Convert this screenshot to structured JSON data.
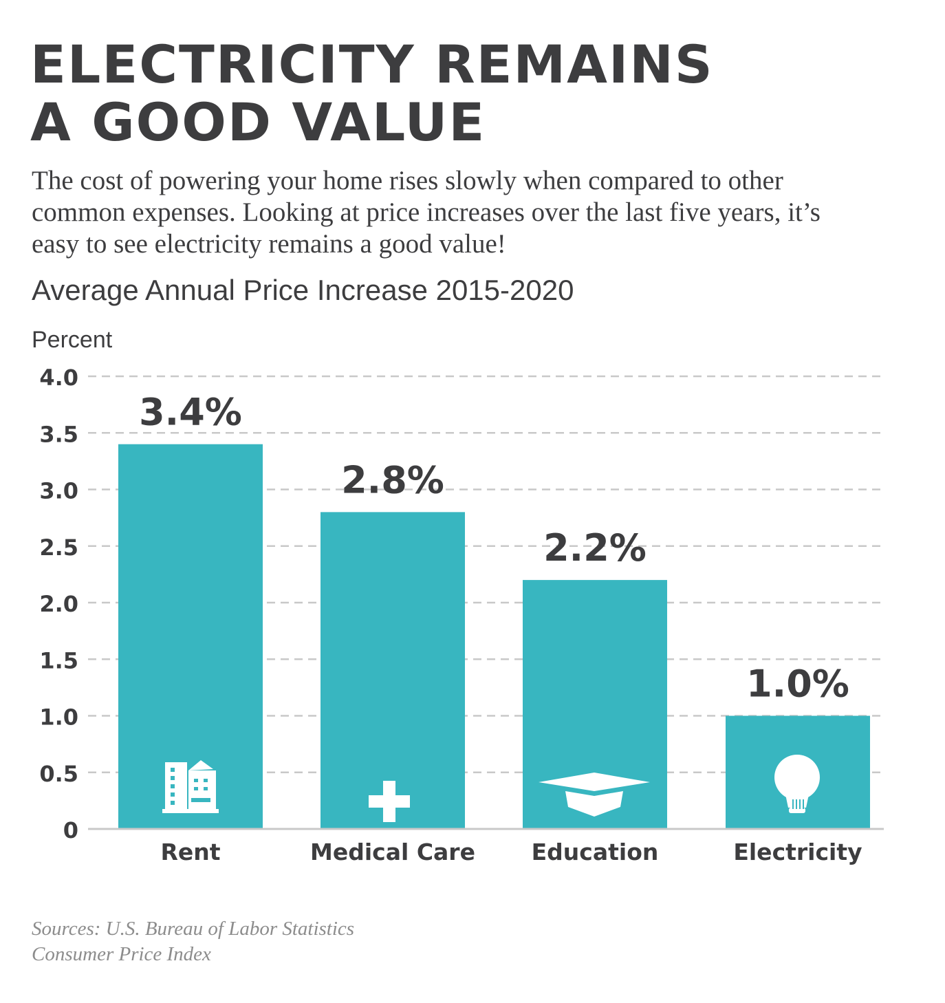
{
  "header": {
    "title_line1": "ELECTRICITY REMAINS",
    "title_line2": "A GOOD VALUE",
    "subtitle_line1": "The cost of powering your home rises slowly when compared to other",
    "subtitle_line2": "common expenses. Looking at price increases over the last five years, it’s",
    "subtitle_line3": "easy to see electricity remains a good value!"
  },
  "chart_data": {
    "type": "bar",
    "title": "Average Annual Price Increase 2015-2020",
    "ylabel": "Percent",
    "xlabel": "",
    "categories": [
      "Rent",
      "Medical Care",
      "Education",
      "Electricity"
    ],
    "values": [
      3.4,
      2.8,
      2.2,
      1.0
    ],
    "data_labels": [
      "3.4%",
      "2.8%",
      "2.2%",
      "1.0%"
    ],
    "icons": [
      "building-icon",
      "medical-cross-icon",
      "graduation-cap-icon",
      "lightbulb-icon"
    ],
    "y_ticks": [
      "0",
      "0.5",
      "1.0",
      "1.5",
      "2.0",
      "2.5",
      "3.0",
      "3.5",
      "4.0"
    ],
    "ylim": [
      0,
      4
    ],
    "grid": true,
    "grid_style": "dashed",
    "bar_color": "#38b6c0",
    "text_color": "#3d3d3f",
    "grid_color": "#c8c8c8"
  },
  "footer": {
    "source_line1": "Sources: U.S. Bureau of Labor Statistics",
    "source_line2": "Consumer Price Index"
  }
}
